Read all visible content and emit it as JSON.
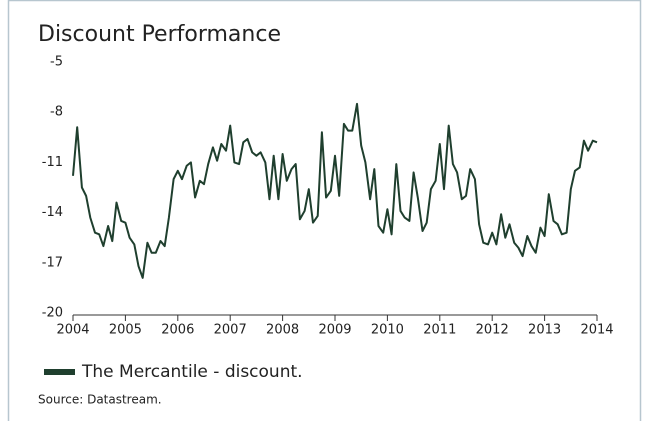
{
  "chart_data": {
    "type": "line",
    "title": "Discount Performance",
    "source": "Source: Datastream.",
    "xlim": [
      2004,
      2014
    ],
    "xticks": [
      2004,
      2005,
      2006,
      2007,
      2008,
      2009,
      2010,
      2011,
      2012,
      2013,
      2014
    ],
    "ylim": [
      -20,
      -5
    ],
    "yticks": [
      -20,
      -17,
      -14,
      -11,
      -8,
      -5
    ],
    "grid": false,
    "legend": "bottom-left",
    "x": [
      2004.0,
      2004.08,
      2004.17,
      2004.25,
      2004.33,
      2004.42,
      2004.5,
      2004.58,
      2004.67,
      2004.75,
      2004.83,
      2004.92,
      2005.0,
      2005.08,
      2005.17,
      2005.25,
      2005.33,
      2005.42,
      2005.5,
      2005.58,
      2005.67,
      2005.75,
      2005.83,
      2005.92,
      2006.0,
      2006.08,
      2006.17,
      2006.25,
      2006.33,
      2006.42,
      2006.5,
      2006.58,
      2006.67,
      2006.75,
      2006.83,
      2006.92,
      2007.0,
      2007.08,
      2007.17,
      2007.25,
      2007.33,
      2007.42,
      2007.5,
      2007.58,
      2007.67,
      2007.75,
      2007.83,
      2007.92,
      2008.0,
      2008.08,
      2008.17,
      2008.25,
      2008.33,
      2008.42,
      2008.5,
      2008.58,
      2008.67,
      2008.75,
      2008.83,
      2008.92,
      2009.0,
      2009.08,
      2009.17,
      2009.25,
      2009.33,
      2009.42,
      2009.5,
      2009.58,
      2009.67,
      2009.75,
      2009.83,
      2009.92,
      2010.0,
      2010.08,
      2010.17,
      2010.25,
      2010.33,
      2010.42,
      2010.5,
      2010.58,
      2010.67,
      2010.75,
      2010.83,
      2010.92,
      2011.0,
      2011.08,
      2011.17,
      2011.25,
      2011.33,
      2011.42,
      2011.5,
      2011.58,
      2011.67,
      2011.75,
      2011.83,
      2011.92,
      2012.0,
      2012.08,
      2012.17,
      2012.25,
      2012.33,
      2012.42,
      2012.5,
      2012.58,
      2012.67,
      2012.75,
      2012.83,
      2012.92,
      2013.0,
      2013.08,
      2013.17,
      2013.25,
      2013.33,
      2013.42,
      2013.5,
      2013.58,
      2013.67,
      2013.75,
      2013.83,
      2013.92,
      2014.0
    ],
    "series": [
      {
        "name": "The Mercantile - discount.",
        "color": "#1f3f2e",
        "values": [
          -11.8,
          -8.9,
          -12.5,
          -13,
          -14.3,
          -15.2,
          -15.3,
          -16,
          -14.8,
          -15.7,
          -13.4,
          -14.5,
          -14.6,
          -15.5,
          -15.9,
          -17.2,
          -17.9,
          -15.8,
          -16.4,
          -16.4,
          -15.7,
          -16,
          -14.3,
          -12,
          -11.5,
          -12,
          -11.2,
          -11,
          -13.1,
          -12.1,
          -12.3,
          -11.1,
          -10.1,
          -10.9,
          -9.9,
          -10.3,
          -8.8,
          -11,
          -11.1,
          -9.8,
          -9.6,
          -10.4,
          -10.6,
          -10.4,
          -11,
          -13.2,
          -10.6,
          -13.2,
          -10.5,
          -12.1,
          -11.4,
          -11.1,
          -14.4,
          -13.9,
          -12.6,
          -14.6,
          -14.2,
          -9.2,
          -13.1,
          -12.7,
          -10.6,
          -13,
          -8.7,
          -9.1,
          -9.1,
          -7.5,
          -10,
          -11,
          -13.2,
          -11.4,
          -14.8,
          -15.2,
          -13.8,
          -15.3,
          -11.1,
          -13.9,
          -14.3,
          -14.5,
          -11.6,
          -13.1,
          -15.1,
          -14.6,
          -12.6,
          -12.1,
          -9.9,
          -12.6,
          -8.8,
          -11.1,
          -11.6,
          -13.2,
          -13,
          -11.4,
          -12,
          -14.7,
          -15.8,
          -15.9,
          -15.2,
          -15.9,
          -14.1,
          -15.5,
          -14.7,
          -15.8,
          -16.1,
          -16.6,
          -15.4,
          -16,
          -16.4,
          -14.9,
          -15.4,
          -12.9,
          -14.5,
          -14.7,
          -15.3,
          -15.2,
          -12.6,
          -11.5,
          -11.3,
          -9.7,
          -10.3,
          -9.7,
          -9.8
        ]
      }
    ]
  }
}
